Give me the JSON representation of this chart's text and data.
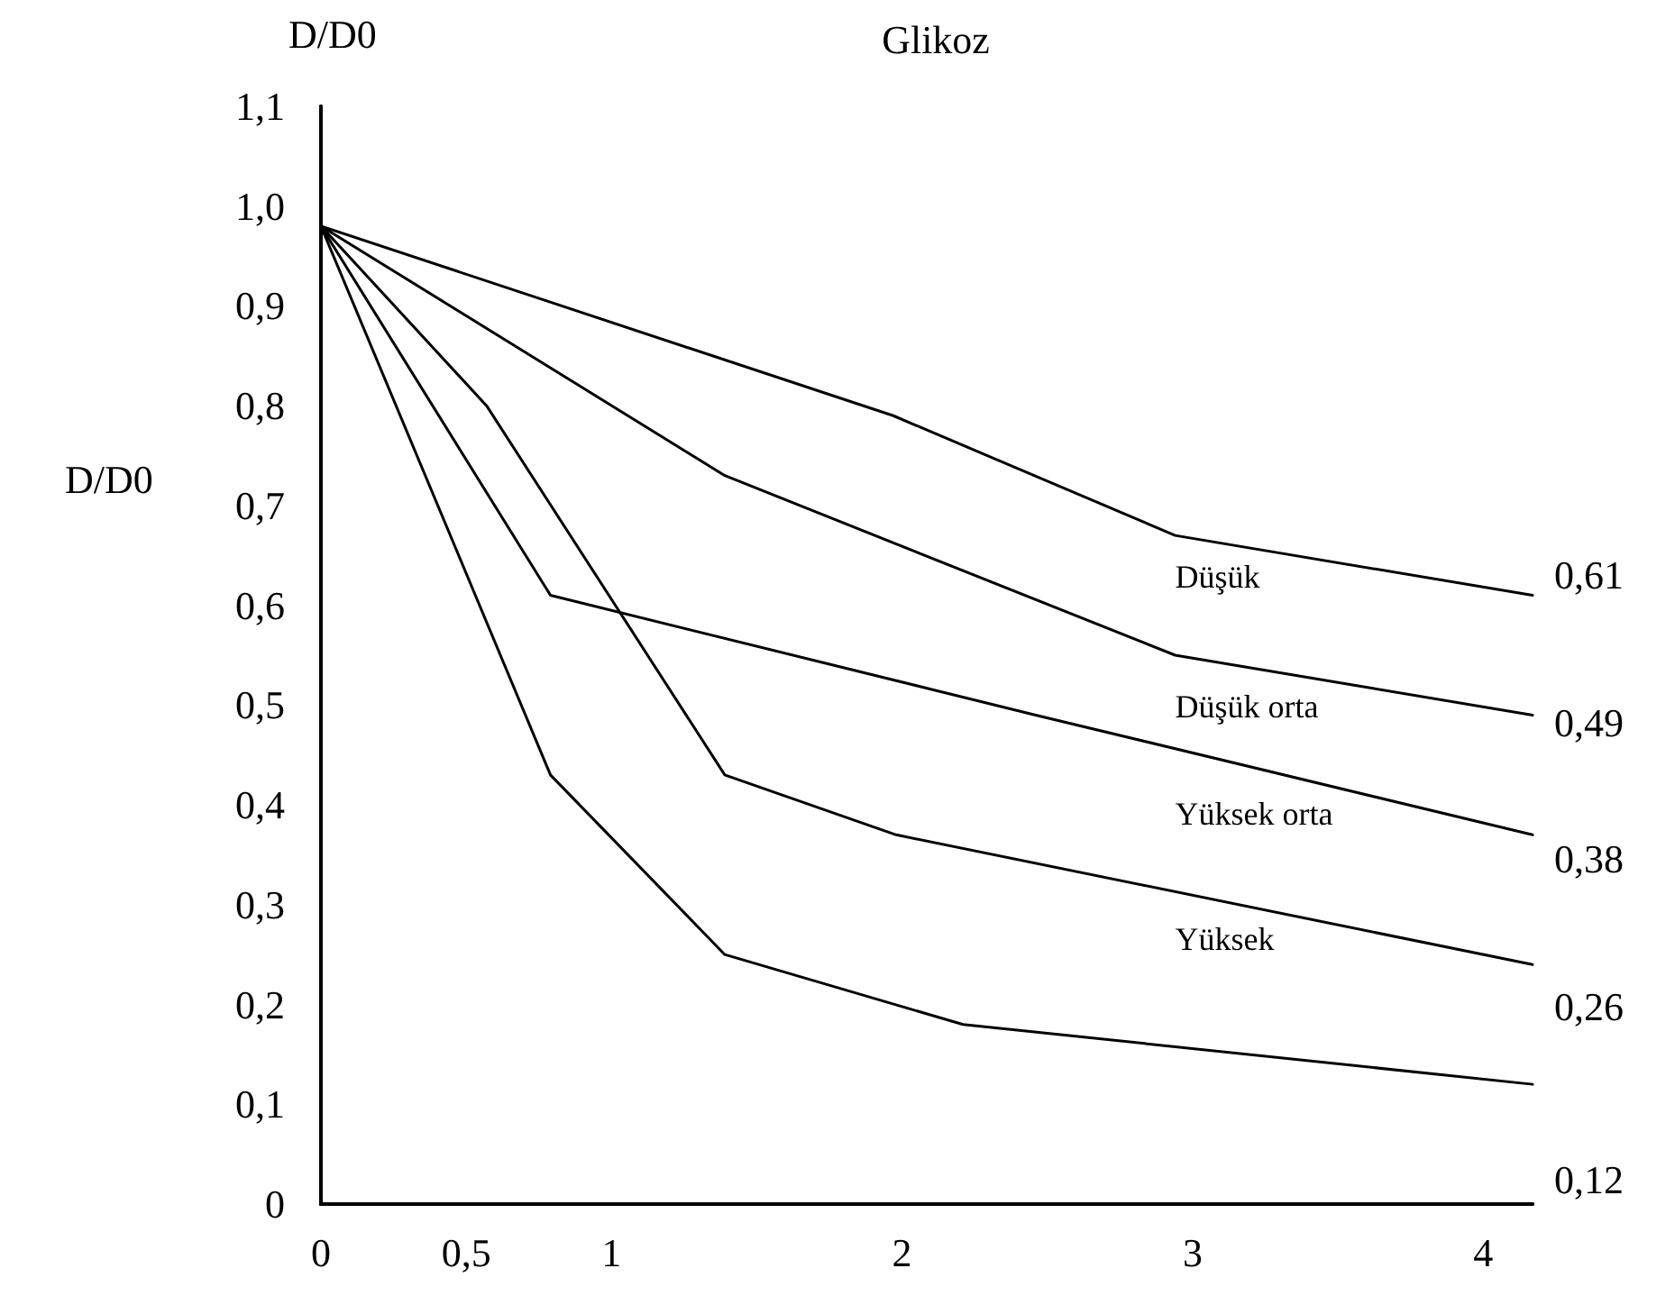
{
  "chart_data": {
    "type": "line",
    "title": "Glikoz",
    "ylabel": "D/D0",
    "annotations": [
      "D/D0"
    ],
    "series": [
      {
        "name": "Düşük",
        "color": "#000000",
        "x": [
          0,
          1.97,
          2.94,
          4.17
        ],
        "values": [
          0.98,
          0.79,
          0.67,
          0.61
        ]
      },
      {
        "name": "Düşük orta",
        "color": "#000000",
        "x": [
          0,
          1.39,
          2.94,
          4.17
        ],
        "values": [
          0.98,
          0.73,
          0.55,
          0.49
        ]
      },
      {
        "name": "Yüksek orta",
        "color": "#000000",
        "x": [
          0,
          0.79,
          2.46,
          4.17
        ],
        "values": [
          0.98,
          0.61,
          0.49,
          0.37
        ]
      },
      {
        "name": "Yüksek",
        "color": "#000000",
        "x": [
          0,
          0.57,
          1.39,
          1.98,
          4.17
        ],
        "values": [
          0.98,
          0.8,
          0.43,
          0.37,
          0.24
        ]
      },
      {
        "color": "#000000",
        "x": [
          0,
          0.79,
          1.39,
          2.21,
          4.17
        ],
        "values": [
          0.98,
          0.43,
          0.25,
          0.18,
          0.12
        ]
      }
    ],
    "xlim": [
      0,
      4.17
    ],
    "xticks": [
      0,
      {
        "value": 0.5,
        "label": "0,5"
      },
      1,
      2,
      3,
      4
    ],
    "ylim": [
      0,
      1.1
    ],
    "yticks": [
      0,
      {
        "value": 0.1,
        "label": "0,1"
      },
      {
        "value": 0.2,
        "label": "0,2"
      },
      {
        "value": 0.3,
        "label": "0,3"
      },
      {
        "value": 0.4,
        "label": "0,4"
      },
      {
        "value": 0.5,
        "label": "0,5"
      },
      {
        "value": 0.6,
        "label": "0,6"
      },
      {
        "value": 0.7,
        "label": "0,7"
      },
      {
        "value": 0.8,
        "label": "0,8"
      },
      {
        "value": 0.9,
        "label": "0,9"
      },
      {
        "value": 1.0,
        "label": "1,0"
      },
      {
        "value": 1.1,
        "label": "1,1"
      }
    ],
    "y2lim": [
      0.1,
      0.99
    ],
    "y2ticks": [
      {
        "value": 0.12,
        "label": "0,12"
      },
      {
        "value": 0.26,
        "label": "0,26"
      },
      {
        "value": 0.38,
        "label": "0,38"
      },
      {
        "value": 0.49,
        "label": "0,49"
      },
      {
        "value": 0.61,
        "label": "0,61"
      }
    ],
    "grid": false,
    "legend": false,
    "marker": "none",
    "line_style": "solid"
  }
}
